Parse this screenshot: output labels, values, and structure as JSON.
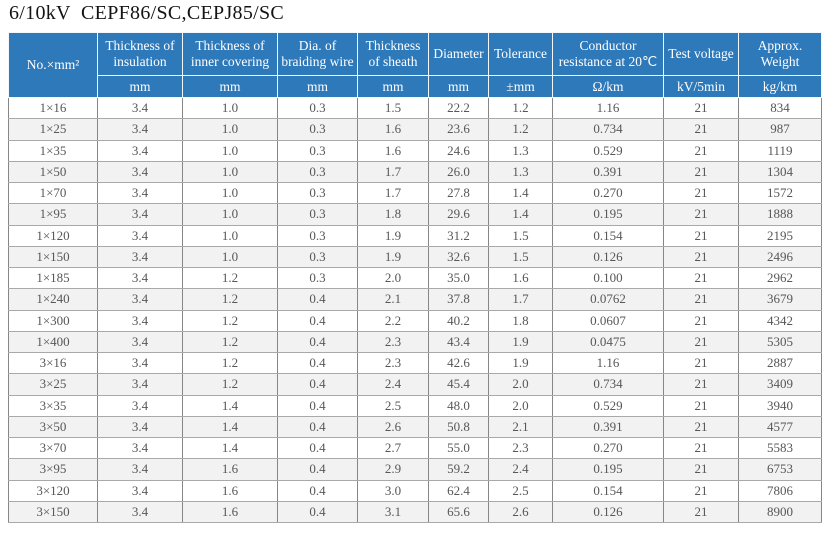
{
  "title": "6/10kV  CEPF86/SC,CEPJ85/SC",
  "colors": {
    "header_bg": "#2e79ba",
    "header_text": "#ffffff",
    "row_stripe": "#f2f2f2",
    "body_text": "#575757"
  },
  "table": {
    "columns": [
      {
        "label": "No.×mm²",
        "unit": ""
      },
      {
        "label": "Thickness of insulation",
        "unit": "mm"
      },
      {
        "label": "Thickness of inner covering",
        "unit": "mm"
      },
      {
        "label": "Dia. of braiding wire",
        "unit": "mm"
      },
      {
        "label": "Thickness of sheath",
        "unit": "mm"
      },
      {
        "label": "Diameter",
        "unit": "mm"
      },
      {
        "label": "Tolerance",
        "unit": "±mm"
      },
      {
        "label": "Conductor resistance at 20℃",
        "unit": "Ω/km"
      },
      {
        "label": "Test voltage",
        "unit": "kV/5min"
      },
      {
        "label": "Approx. Weight",
        "unit": "kg/km"
      }
    ],
    "rows": [
      [
        "1×16",
        "3.4",
        "1.0",
        "0.3",
        "1.5",
        "22.2",
        "1.2",
        "1.16",
        "21",
        "834"
      ],
      [
        "1×25",
        "3.4",
        "1.0",
        "0.3",
        "1.6",
        "23.6",
        "1.2",
        "0.734",
        "21",
        "987"
      ],
      [
        "1×35",
        "3.4",
        "1.0",
        "0.3",
        "1.6",
        "24.6",
        "1.3",
        "0.529",
        "21",
        "1119"
      ],
      [
        "1×50",
        "3.4",
        "1.0",
        "0.3",
        "1.7",
        "26.0",
        "1.3",
        "0.391",
        "21",
        "1304"
      ],
      [
        "1×70",
        "3.4",
        "1.0",
        "0.3",
        "1.7",
        "27.8",
        "1.4",
        "0.270",
        "21",
        "1572"
      ],
      [
        "1×95",
        "3.4",
        "1.0",
        "0.3",
        "1.8",
        "29.6",
        "1.4",
        "0.195",
        "21",
        "1888"
      ],
      [
        "1×120",
        "3.4",
        "1.0",
        "0.3",
        "1.9",
        "31.2",
        "1.5",
        "0.154",
        "21",
        "2195"
      ],
      [
        "1×150",
        "3.4",
        "1.0",
        "0.3",
        "1.9",
        "32.6",
        "1.5",
        "0.126",
        "21",
        "2496"
      ],
      [
        "1×185",
        "3.4",
        "1.2",
        "0.3",
        "2.0",
        "35.0",
        "1.6",
        "0.100",
        "21",
        "2962"
      ],
      [
        "1×240",
        "3.4",
        "1.2",
        "0.4",
        "2.1",
        "37.8",
        "1.7",
        "0.0762",
        "21",
        "3679"
      ],
      [
        "1×300",
        "3.4",
        "1.2",
        "0.4",
        "2.2",
        "40.2",
        "1.8",
        "0.0607",
        "21",
        "4342"
      ],
      [
        "1×400",
        "3.4",
        "1.2",
        "0.4",
        "2.3",
        "43.4",
        "1.9",
        "0.0475",
        "21",
        "5305"
      ],
      [
        "3×16",
        "3.4",
        "1.2",
        "0.4",
        "2.3",
        "42.6",
        "1.9",
        "1.16",
        "21",
        "2887"
      ],
      [
        "3×25",
        "3.4",
        "1.2",
        "0.4",
        "2.4",
        "45.4",
        "2.0",
        "0.734",
        "21",
        "3409"
      ],
      [
        "3×35",
        "3.4",
        "1.4",
        "0.4",
        "2.5",
        "48.0",
        "2.0",
        "0.529",
        "21",
        "3940"
      ],
      [
        "3×50",
        "3.4",
        "1.4",
        "0.4",
        "2.6",
        "50.8",
        "2.1",
        "0.391",
        "21",
        "4577"
      ],
      [
        "3×70",
        "3.4",
        "1.4",
        "0.4",
        "2.7",
        "55.0",
        "2.3",
        "0.270",
        "21",
        "5583"
      ],
      [
        "3×95",
        "3.4",
        "1.6",
        "0.4",
        "2.9",
        "59.2",
        "2.4",
        "0.195",
        "21",
        "6753"
      ],
      [
        "3×120",
        "3.4",
        "1.6",
        "0.4",
        "3.0",
        "62.4",
        "2.5",
        "0.154",
        "21",
        "7806"
      ],
      [
        "3×150",
        "3.4",
        "1.6",
        "0.4",
        "3.1",
        "65.6",
        "2.6",
        "0.126",
        "21",
        "8900"
      ]
    ]
  }
}
